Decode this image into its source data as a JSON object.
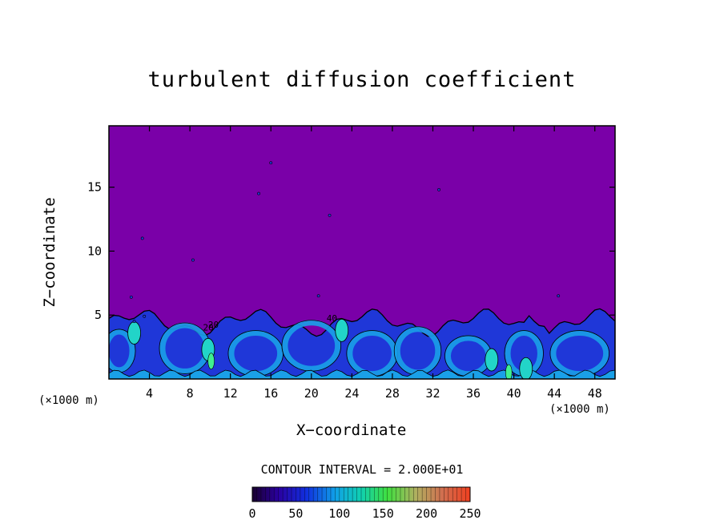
{
  "chart_data": {
    "type": "heatmap",
    "title": "turbulent diffusion coefficient",
    "xlabel": "X−coordinate",
    "ylabel": "Z−coordinate",
    "x_unit_label": "(×1000 m)",
    "x_ticks": [
      4,
      8,
      12,
      16,
      20,
      24,
      28,
      32,
      36,
      40,
      44,
      48
    ],
    "y_ticks": [
      5,
      10,
      15
    ],
    "xlim": [
      0,
      50
    ],
    "ylim": [
      0,
      19.8
    ],
    "contour_interval_text": "CONTOUR INTERVAL = 2.000E+01",
    "contour_labels": [
      "20",
      "20",
      "40"
    ],
    "colorbar": {
      "ticks": [
        0,
        50,
        100,
        150,
        200,
        250
      ],
      "range": [
        0,
        250
      ]
    },
    "background_value": 0,
    "turbulent_layer_top_approx": 5,
    "colors": {
      "background": "#7a00a8",
      "layer_low": "#1f37d8",
      "layer_mid": "#1aa0e8",
      "layer_high": "#22d4c8",
      "layer_peak": "#40f090",
      "contour": "#000000"
    }
  }
}
